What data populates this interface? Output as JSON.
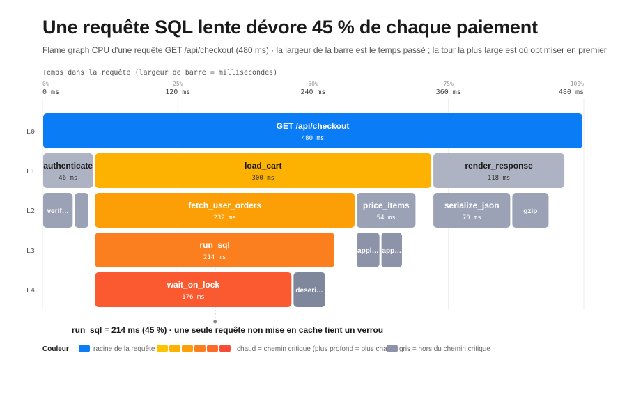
{
  "header": {
    "title": "Une requête SQL lente dévore 45 % de chaque paiement",
    "subtitle": "Flame graph CPU d'une requête GET /api/checkout (480 ms) · la largeur de la barre est le temps passé ; la tour la plus large est où optimiser en premier"
  },
  "chart_data": {
    "type": "bar",
    "subtype": "flame-graph",
    "xlabel": "Temps dans la requête (largeur de barre = millisecondes)",
    "xlim": [
      0,
      480
    ],
    "ticks": [
      {
        "ms": 0,
        "ms_label": "0 ms",
        "pct_label": "0%"
      },
      {
        "ms": 120,
        "ms_label": "120 ms",
        "pct_label": "25%"
      },
      {
        "ms": 240,
        "ms_label": "240 ms",
        "pct_label": "50%"
      },
      {
        "ms": 360,
        "ms_label": "360 ms",
        "pct_label": "75%"
      },
      {
        "ms": 480,
        "ms_label": "480 ms",
        "pct_label": "100%"
      }
    ],
    "grid": true,
    "levels": [
      "L0",
      "L1",
      "L2",
      "L3",
      "L4"
    ],
    "frames": [
      {
        "level": 0,
        "start": 0,
        "ms": 480,
        "label": "GET /api/checkout",
        "value_label": "480 ms",
        "color": "#0a7cf5"
      },
      {
        "level": 1,
        "start": 0,
        "ms": 46,
        "label": "authenticate",
        "value_label": "46 ms",
        "color": "#aeb3c3"
      },
      {
        "level": 1,
        "start": 46,
        "ms": 300,
        "label": "load_cart",
        "value_label": "300 ms",
        "color": "#fdb201"
      },
      {
        "level": 1,
        "start": 346,
        "ms": 118,
        "label": "render_response",
        "value_label": "118 ms",
        "color": "#aeb3c3"
      },
      {
        "level": 2,
        "start": 0,
        "ms": 28,
        "label": "verif…",
        "value_label": "",
        "color": "#9ca2b6"
      },
      {
        "level": 2,
        "start": 28,
        "ms": 14,
        "label": "",
        "value_label": "",
        "color": "#9ca2b6"
      },
      {
        "level": 2,
        "start": 46,
        "ms": 232,
        "label": "fetch_user_orders",
        "value_label": "232 ms",
        "color": "#fc9f06"
      },
      {
        "level": 2,
        "start": 278,
        "ms": 54,
        "label": "price_items",
        "value_label": "54 ms",
        "color": "#9ca2b6"
      },
      {
        "level": 2,
        "start": 346,
        "ms": 70,
        "label": "serialize_json",
        "value_label": "70 ms",
        "color": "#9ca2b6"
      },
      {
        "level": 2,
        "start": 416,
        "ms": 34,
        "label": "gzip",
        "value_label": "",
        "color": "#9ca2b6"
      },
      {
        "level": 3,
        "start": 46,
        "ms": 214,
        "label": "run_sql",
        "value_label": "214 ms",
        "color": "#fc7f1f"
      },
      {
        "level": 3,
        "start": 278,
        "ms": 22,
        "label": "appl…",
        "value_label": "",
        "color": "#8d94a9"
      },
      {
        "level": 3,
        "start": 300,
        "ms": 20,
        "label": "app…",
        "value_label": "",
        "color": "#8d94a9"
      },
      {
        "level": 4,
        "start": 46,
        "ms": 176,
        "label": "wait_on_lock",
        "value_label": "176 ms",
        "color": "#fb5a30"
      },
      {
        "level": 4,
        "start": 222,
        "ms": 30,
        "label": "deseri…",
        "value_label": "",
        "color": "#7f879c"
      }
    ],
    "annotation": {
      "text": "run_sql = 214 ms (45 %) · une seule requête non mise en cache tient un verrou",
      "target_ms": 153
    }
  },
  "legend": {
    "title": "Couleur",
    "root_label": "racine de la requête",
    "root_color": "#0a7cf5",
    "hot_colors": [
      "#fdc200",
      "#fdb201",
      "#fc9f06",
      "#fc7f1f",
      "#fb6a28",
      "#f94b3a"
    ],
    "hot_label": "chaud = chemin critique (plus profond = plus chaud)",
    "cold_label": "gris = hors du chemin critique",
    "cold_color": "#8d94a9"
  }
}
